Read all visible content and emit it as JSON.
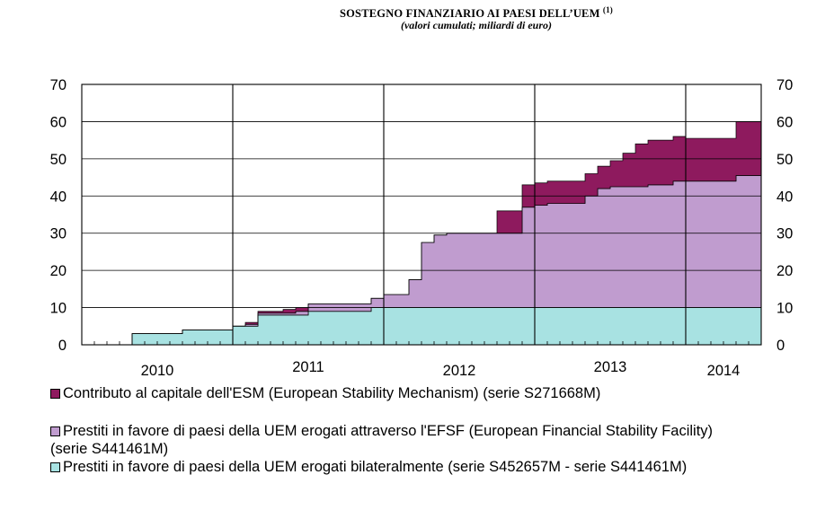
{
  "chart_data": {
    "type": "area",
    "title": "SOSTEGNO FINANZIARIO AI PAESI DELL’UEM",
    "title_note": "(1)",
    "subtitle": "(valori cumulati; miliardi di euro)",
    "ylim": [
      0,
      70
    ],
    "yticks": [
      0,
      10,
      20,
      30,
      40,
      50,
      60,
      70
    ],
    "grid": true,
    "stacked": true,
    "x": [
      "2010-01",
      "2010-02",
      "2010-03",
      "2010-04",
      "2010-05",
      "2010-06",
      "2010-07",
      "2010-08",
      "2010-09",
      "2010-10",
      "2010-11",
      "2010-12",
      "2011-01",
      "2011-02",
      "2011-03",
      "2011-04",
      "2011-05",
      "2011-06",
      "2011-07",
      "2011-08",
      "2011-09",
      "2011-10",
      "2011-11",
      "2011-12",
      "2012-01",
      "2012-02",
      "2012-03",
      "2012-04",
      "2012-05",
      "2012-06",
      "2012-07",
      "2012-08",
      "2012-09",
      "2012-10",
      "2012-11",
      "2012-12",
      "2013-01",
      "2013-02",
      "2013-03",
      "2013-04",
      "2013-05",
      "2013-06",
      "2013-07",
      "2013-08",
      "2013-09",
      "2013-10",
      "2013-11",
      "2013-12",
      "2014-01",
      "2014-02",
      "2014-03",
      "2014-04",
      "2014-05",
      "2014-06"
    ],
    "year_labels": [
      {
        "label": "2010",
        "start": "2010-01",
        "end": "2010-12"
      },
      {
        "label": "2011",
        "start": "2011-01",
        "end": "2011-12"
      },
      {
        "label": "2012",
        "start": "2012-01",
        "end": "2012-12"
      },
      {
        "label": "2013",
        "start": "2013-01",
        "end": "2013-12"
      },
      {
        "label": "2014",
        "start": "2014-01",
        "end": "2014-06"
      }
    ],
    "series": [
      {
        "name": "Prestiti in favore di paesi della UEM erogati bilateralmente (serie S452657M - serie S441461M)",
        "color": "#a8e2e2",
        "values": [
          0,
          0,
          0,
          0,
          3,
          3,
          3,
          3,
          4,
          4,
          4,
          4,
          5,
          5,
          8,
          8,
          8,
          8,
          9,
          9,
          9,
          9,
          9,
          10,
          10,
          10,
          10,
          10,
          10,
          10,
          10,
          10,
          10,
          10,
          10,
          10,
          10,
          10,
          10,
          10,
          10,
          10,
          10,
          10,
          10,
          10,
          10,
          10,
          10,
          10,
          10,
          10,
          10,
          10
        ]
      },
      {
        "name": "Prestiti in favore di paesi della UEM erogati attraverso l'EFSF (European Financial Stability Facility) (serie S441461M)",
        "color": "#c09ccf",
        "values": [
          0,
          0,
          0,
          0,
          0,
          0,
          0,
          0,
          0,
          0,
          0,
          0,
          0,
          0.5,
          0.5,
          0.5,
          0.5,
          1,
          2,
          2,
          2,
          2,
          2,
          2.5,
          3.5,
          3.5,
          7.5,
          17.5,
          19.5,
          20,
          20,
          20,
          20,
          20,
          20,
          27,
          27.5,
          28,
          28,
          28,
          30,
          32,
          32.5,
          32.5,
          32.5,
          33,
          33,
          34,
          34,
          34,
          34,
          34,
          35.5,
          35.5
        ]
      },
      {
        "name": "Contributo al capitale dell'ESM (European Stability Mechanism) (serie S271668M)",
        "color": "#8e1a5e",
        "values": [
          0,
          0,
          0,
          0,
          0,
          0,
          0,
          0,
          0,
          0,
          0,
          0,
          0,
          0.5,
          0.5,
          0.5,
          1,
          1,
          0,
          0,
          0,
          0,
          0,
          0,
          0,
          0,
          0,
          0,
          0,
          0,
          0,
          0,
          0,
          6,
          6,
          6,
          6,
          6,
          6,
          6,
          6,
          6,
          7,
          9,
          11.5,
          12,
          12,
          12,
          11.5,
          11.5,
          11.5,
          11.5,
          14.5,
          14.5
        ]
      }
    ],
    "legend": [
      "Contributo al capitale dell'ESM (European Stability Mechanism) (serie S271668M)",
      "Prestiti in favore di paesi della UEM erogati attraverso l'EFSF (European Financial Stability Facility)",
      "(serie S441461M)",
      "Prestiti in favore di paesi della UEM erogati bilateralmente (serie S452657M - serie S441461M)"
    ]
  }
}
